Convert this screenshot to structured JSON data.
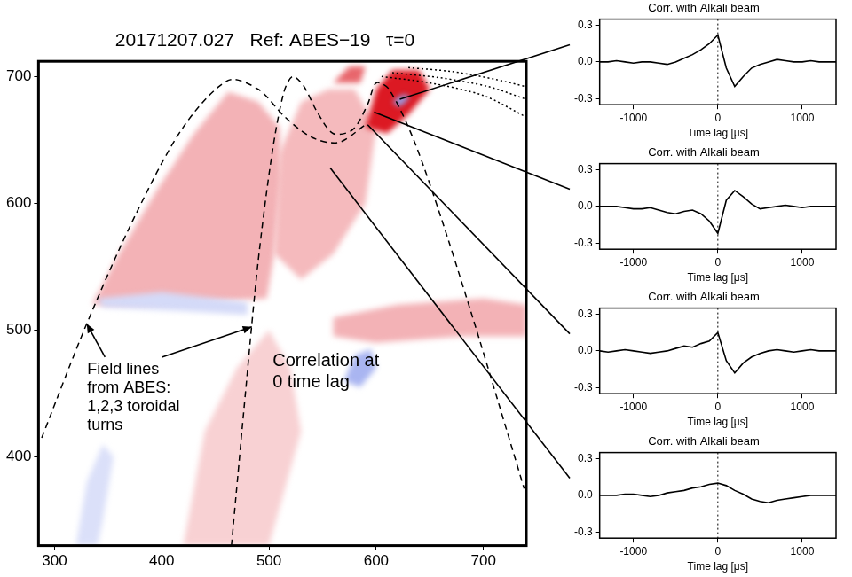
{
  "chart_data": [
    {
      "type": "map",
      "title": "20171207.027   Ref: ABES−19   τ=0",
      "xlim": [
        285,
        740
      ],
      "xticks": [
        300,
        400,
        500,
        600,
        700
      ],
      "ylim": [
        330,
        712
      ],
      "yticks": [
        400,
        500,
        600,
        700
      ],
      "grid": false,
      "correlation_regions": [
        {
          "value": 0.06,
          "x": [
            420,
            440,
            470,
            500,
            520,
            530,
            500
          ],
          "y": [
            330,
            420,
            470,
            500,
            470,
            420,
            330
          ]
        },
        {
          "value": 0.1,
          "x": [
            335,
            360,
            395,
            430,
            462,
            490,
            510,
            512,
            505,
            498,
            440,
            380
          ],
          "y": [
            520,
            560,
            610,
            655,
            688,
            680,
            660,
            620,
            560,
            525,
            522,
            520
          ]
        },
        {
          "value": 0.09,
          "x": [
            505,
            510,
            530,
            555,
            580,
            600,
            590,
            560,
            530
          ],
          "y": [
            560,
            640,
            680,
            690,
            690,
            660,
            600,
            560,
            540
          ]
        },
        {
          "value": 0.1,
          "x": [
            560,
            620,
            700,
            740,
            740,
            680,
            600,
            560
          ],
          "y": [
            510,
            520,
            525,
            520,
            495,
            495,
            490,
            495
          ]
        },
        {
          "value": 0.3,
          "x": [
            590,
            600,
            615,
            640,
            650,
            630,
            610
          ],
          "y": [
            660,
            690,
            705,
            705,
            690,
            670,
            655
          ]
        },
        {
          "value": 0.2,
          "x": [
            560,
            575,
            590,
            585
          ],
          "y": [
            695,
            708,
            708,
            695
          ]
        },
        {
          "value": -0.06,
          "x": [
            340,
            400,
            480,
            480,
            420,
            345
          ],
          "y": [
            525,
            530,
            522,
            512,
            515,
            518
          ]
        },
        {
          "value": -0.12,
          "x": [
            570,
            580,
            595,
            600,
            585
          ],
          "y": [
            460,
            480,
            485,
            470,
            455
          ]
        },
        {
          "value": -0.05,
          "x": [
            320,
            330,
            345,
            355,
            345,
            340
          ],
          "y": [
            330,
            380,
            410,
            400,
            350,
            330
          ]
        },
        {
          "value": -0.15,
          "x": [
            615,
            625,
            632,
            622
          ],
          "y": [
            680,
            686,
            684,
            676
          ]
        }
      ],
      "field_lines": [
        {
          "x": [
            288,
            330,
            375,
            420,
            462,
            490,
            515,
            540,
            565,
            590
          ],
          "y": [
            415,
            505,
            590,
            660,
            697,
            690,
            668,
            652,
            648,
            662
          ],
          "line_style": "dashed"
        },
        {
          "x": [
            465,
            478,
            490,
            503,
            514,
            522,
            532,
            545,
            560,
            578,
            592,
            600,
            612,
            635,
            660,
            690,
            715,
            738
          ],
          "y": [
            330,
            450,
            555,
            640,
            688,
            700,
            693,
            672,
            655,
            658,
            678,
            695,
            690,
            650,
            590,
            510,
            440,
            375
          ],
          "line_style": "dashed"
        },
        {
          "x": [
            605,
            650,
            700,
            740
          ],
          "y": [
            700,
            695,
            685,
            668
          ],
          "line_style": "dotted"
        },
        {
          "x": [
            615,
            660,
            705,
            740
          ],
          "y": [
            703,
            699,
            692,
            682
          ],
          "line_style": "dotted"
        },
        {
          "x": [
            630,
            670,
            710,
            740
          ],
          "y": [
            707,
            704,
            698,
            692
          ],
          "line_style": "dotted"
        }
      ],
      "annotations": [
        {
          "text": [
            "Field lines",
            "from ABES:",
            "1,2,3 toroidal",
            "turns"
          ]
        },
        {
          "text": [
            "Correlation at",
            "0 time lag"
          ]
        }
      ]
    },
    {
      "type": "line",
      "title": "Corr. with Alkali beam",
      "x_label": "Time lag [μs]",
      "location": {
        "x": 622,
        "y": 682
      },
      "color": "#000000",
      "x": [
        -1400,
        -1300,
        -1200,
        -1100,
        -1000,
        -900,
        -800,
        -700,
        -600,
        -500,
        -400,
        -300,
        -200,
        -100,
        0,
        100,
        200,
        300,
        400,
        500,
        600,
        700,
        800,
        900,
        1000,
        1100,
        1200,
        1300,
        1400
      ],
      "values": [
        0,
        0,
        0.01,
        0,
        -0.01,
        0,
        0,
        -0.01,
        -0.02,
        0,
        0.03,
        0.06,
        0.1,
        0.15,
        0.22,
        -0.05,
        -0.2,
        -0.12,
        -0.05,
        -0.02,
        0,
        0.02,
        0.01,
        0,
        0,
        0.01,
        0,
        0,
        0
      ],
      "xlim": [
        -1400,
        1400
      ],
      "xticks": [
        -1000,
        0,
        1000
      ],
      "ylim": [
        -0.35,
        0.35
      ],
      "yticks": [
        -0.3,
        {
          "value": 0,
          "label": "0.0"
        },
        0.3
      ],
      "reference_line": {
        "x": 0,
        "line_style": "dotted"
      },
      "grid": false
    },
    {
      "type": "line",
      "title": "Corr. with Alkali beam",
      "x_label": "Time lag [μs]",
      "location": {
        "x": 598,
        "y": 672
      },
      "color": "#000000",
      "x": [
        -1400,
        -1300,
        -1200,
        -1100,
        -1000,
        -900,
        -800,
        -700,
        -600,
        -500,
        -400,
        -300,
        -200,
        -100,
        0,
        100,
        200,
        300,
        400,
        500,
        600,
        700,
        800,
        900,
        1000,
        1100,
        1200,
        1300,
        1400
      ],
      "values": [
        0,
        0,
        0,
        -0.01,
        -0.02,
        -0.02,
        -0.01,
        -0.03,
        -0.05,
        -0.06,
        -0.04,
        -0.03,
        -0.06,
        -0.12,
        -0.22,
        0.05,
        0.13,
        0.08,
        0.02,
        -0.02,
        -0.01,
        0,
        0.01,
        0,
        -0.01,
        0,
        0,
        0,
        0
      ],
      "xlim": [
        -1400,
        1400
      ],
      "xticks": [
        -1000,
        0,
        1000
      ],
      "ylim": [
        -0.35,
        0.35
      ],
      "yticks": [
        -0.3,
        {
          "value": 0,
          "label": "0.0"
        },
        0.3
      ],
      "reference_line": {
        "x": 0,
        "line_style": "dotted"
      },
      "grid": false
    },
    {
      "type": "line",
      "title": "Corr. with Alkali beam",
      "x_label": "Time lag [μs]",
      "location": {
        "x": 592,
        "y": 662
      },
      "color": "#000000",
      "x": [
        -1400,
        -1300,
        -1200,
        -1100,
        -1000,
        -900,
        -800,
        -700,
        -600,
        -500,
        -400,
        -300,
        -200,
        -100,
        0,
        100,
        200,
        300,
        400,
        500,
        600,
        700,
        800,
        900,
        1000,
        1100,
        1200,
        1300,
        1400
      ],
      "values": [
        0,
        -0.01,
        0,
        0.01,
        0,
        -0.01,
        -0.02,
        -0.01,
        0,
        0.02,
        0.04,
        0.03,
        0.06,
        0.08,
        0.15,
        -0.08,
        -0.18,
        -0.1,
        -0.05,
        -0.02,
        0,
        0.01,
        0,
        -0.01,
        0,
        0.01,
        0,
        0,
        0
      ],
      "xlim": [
        -1400,
        1400
      ],
      "xticks": [
        -1000,
        0,
        1000
      ],
      "ylim": [
        -0.35,
        0.35
      ],
      "yticks": [
        -0.3,
        {
          "value": 0,
          "label": "0.0"
        },
        0.3
      ],
      "reference_line": {
        "x": 0,
        "line_style": "dotted"
      },
      "grid": false
    },
    {
      "type": "line",
      "title": "Corr. with Alkali beam",
      "x_label": "Time lag [μs]",
      "location": {
        "x": 557,
        "y": 628
      },
      "color": "#000000",
      "x": [
        -1400,
        -1300,
        -1200,
        -1100,
        -1000,
        -900,
        -800,
        -700,
        -600,
        -500,
        -400,
        -300,
        -200,
        -100,
        0,
        100,
        200,
        300,
        400,
        500,
        600,
        700,
        800,
        900,
        1000,
        1100,
        1200,
        1300,
        1400
      ],
      "values": [
        0,
        0,
        0,
        0.01,
        0.01,
        0,
        -0.01,
        0,
        0.02,
        0.03,
        0.04,
        0.06,
        0.07,
        0.09,
        0.1,
        0.08,
        0.04,
        0.01,
        -0.03,
        -0.05,
        -0.06,
        -0.04,
        -0.03,
        -0.02,
        -0.01,
        0,
        0,
        0,
        0
      ],
      "xlim": [
        -1400,
        1400
      ],
      "xticks": [
        -1000,
        0,
        1000
      ],
      "ylim": [
        -0.35,
        0.35
      ],
      "yticks": [
        -0.3,
        {
          "value": 0,
          "label": "0.0"
        },
        0.3
      ],
      "reference_line": {
        "x": 0,
        "line_style": "dotted"
      },
      "grid": false
    }
  ]
}
